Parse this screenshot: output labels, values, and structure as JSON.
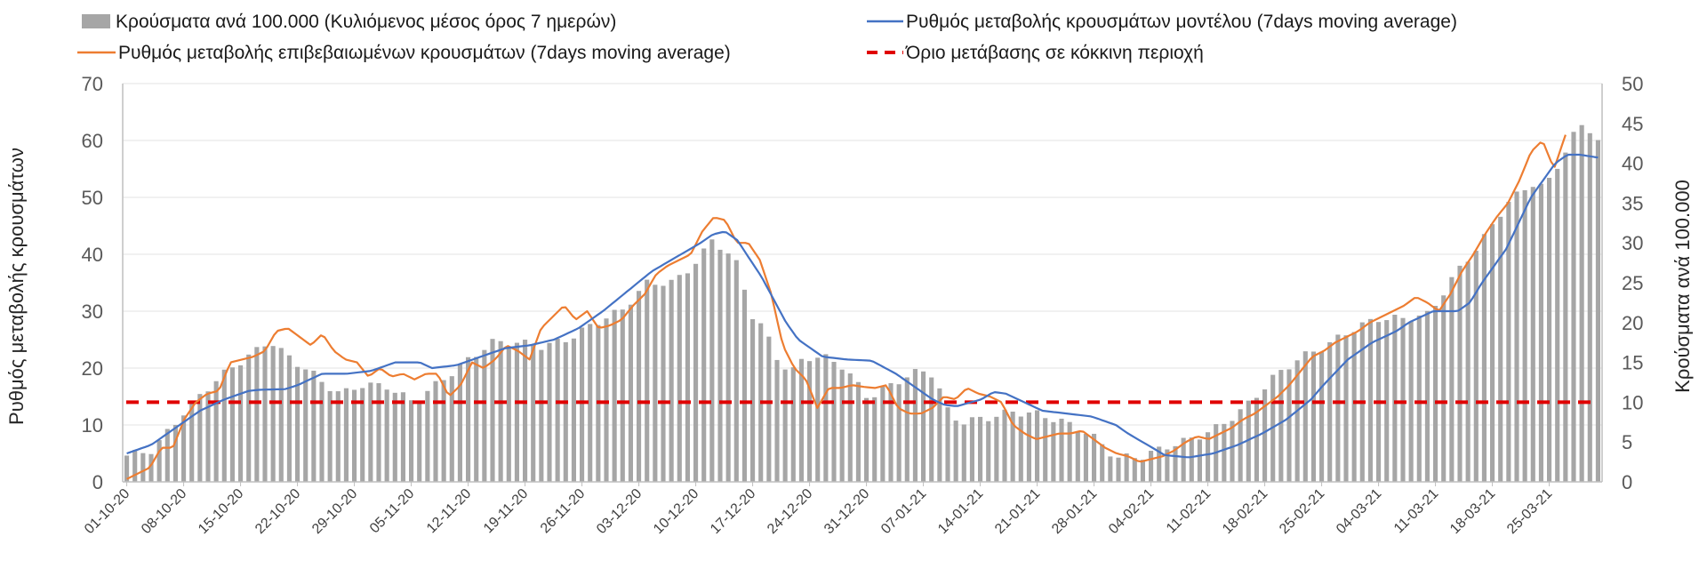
{
  "colors": {
    "bars": "#a6a6a6",
    "model_line": "#4472c4",
    "confirmed_line": "#ed7d31",
    "threshold": "#e00000",
    "grid": "#e3e3e3",
    "axis": "#bfbfbf"
  },
  "legend": {
    "bars": "Κρούσματα ανά 100.000 (Κυλιόμενος μέσος όρος 7 ημερών)",
    "model": "Ρυθμός μεταβολής κρουσμάτων μοντέλου (7days moving average)",
    "confirmed": "Ρυθμός μεταβολής επιβεβαιωμένων κρουσμάτων (7days moving average)",
    "threshold": "Όριο μετάβασης σε κόκκινη περιοχή"
  },
  "chart_data": {
    "type": "bar+line",
    "ylabel_left": "Ρυθμός μεταβολής κρουσμάτων",
    "ylabel_right": "Κρούσματα ανά 100.000",
    "ylim_left": [
      0,
      70
    ],
    "ylim_right": [
      0,
      50
    ],
    "yticks_left": [
      "0",
      "10",
      "20",
      "30",
      "40",
      "50",
      "60",
      "70"
    ],
    "yticks_right": [
      "0",
      "5",
      "10",
      "15",
      "20",
      "25",
      "30",
      "35",
      "40",
      "45",
      "50"
    ],
    "grid": true,
    "threshold_left_value": 14,
    "n_days": 182,
    "x_tick_labels": [
      "01-10-20",
      "08-10-20",
      "15-10-20",
      "22-10-20",
      "29-10-20",
      "05-11-20",
      "12-11-20",
      "19-11-20",
      "26-11-20",
      "03-12-20",
      "10-12-20",
      "17-12-20",
      "24-12-20",
      "31-12-20",
      "07-01-21",
      "14-01-21",
      "21-01-21",
      "28-01-21",
      "04-02-21",
      "11-02-21",
      "18-02-21",
      "25-02-21",
      "04-03-21",
      "11-03-21",
      "18-03-21",
      "25-03-21"
    ],
    "bars_right_axis_keypoints": [
      [
        0,
        3.3
      ],
      [
        4,
        4
      ],
      [
        8,
        8
      ],
      [
        12,
        11.5
      ],
      [
        16,
        14.3
      ],
      [
        20,
        16.5
      ],
      [
        22,
        17.8
      ],
      [
        24,
        16.2
      ],
      [
        26,
        15
      ],
      [
        28,
        14
      ],
      [
        30,
        12.5
      ],
      [
        33,
        11
      ],
      [
        36,
        12.2
      ],
      [
        40,
        12
      ],
      [
        44,
        10
      ],
      [
        48,
        12.5
      ],
      [
        52,
        15
      ],
      [
        56,
        17.5
      ],
      [
        60,
        17.5
      ],
      [
        64,
        17
      ],
      [
        68,
        18
      ],
      [
        72,
        20
      ],
      [
        76,
        21.5
      ],
      [
        80,
        25
      ],
      [
        84,
        25
      ],
      [
        88,
        28
      ],
      [
        90,
        30.5
      ],
      [
        92,
        29
      ],
      [
        94,
        27
      ],
      [
        96,
        21
      ],
      [
        98,
        19
      ],
      [
        100,
        15.5
      ],
      [
        102,
        13.5
      ],
      [
        104,
        15.7
      ],
      [
        108,
        15.5
      ],
      [
        110,
        14.5
      ],
      [
        112,
        12.5
      ],
      [
        114,
        10.5
      ],
      [
        118,
        12.5
      ],
      [
        122,
        14
      ],
      [
        124,
        13.5
      ],
      [
        126,
        9
      ],
      [
        128,
        7.5
      ],
      [
        132,
        8
      ],
      [
        136,
        8.8
      ],
      [
        140,
        8.5
      ],
      [
        144,
        7.5
      ],
      [
        148,
        6
      ],
      [
        150,
        4.5
      ],
      [
        152,
        3
      ],
      [
        156,
        3.2
      ],
      [
        160,
        4.5
      ],
      [
        164,
        5.5
      ],
      [
        168,
        7
      ],
      [
        172,
        9.5
      ],
      [
        176,
        13
      ],
      [
        180,
        15.5
      ],
      [
        184,
        17
      ],
      [
        188,
        19
      ],
      [
        192,
        20.5
      ],
      [
        196,
        20.5
      ],
      [
        200,
        21
      ],
      [
        204,
        26
      ],
      [
        208,
        30
      ],
      [
        212,
        35
      ],
      [
        216,
        37.5
      ],
      [
        218,
        37
      ],
      [
        220,
        40
      ],
      [
        222,
        43.3
      ],
      [
        224,
        45
      ],
      [
        226,
        43
      ]
    ],
    "model_series_keypoints": [
      [
        0,
        5
      ],
      [
        4,
        6.5
      ],
      [
        8,
        9.5
      ],
      [
        12,
        12.5
      ],
      [
        16,
        14.5
      ],
      [
        20,
        16
      ],
      [
        22,
        16.2
      ],
      [
        26,
        16.3
      ],
      [
        28,
        17
      ],
      [
        30,
        18
      ],
      [
        32,
        19
      ],
      [
        36,
        19
      ],
      [
        40,
        19.5
      ],
      [
        44,
        21
      ],
      [
        48,
        21
      ],
      [
        50,
        20
      ],
      [
        54,
        20.5
      ],
      [
        58,
        22
      ],
      [
        62,
        23.5
      ],
      [
        66,
        24
      ],
      [
        70,
        25
      ],
      [
        74,
        27
      ],
      [
        78,
        30
      ],
      [
        82,
        33.5
      ],
      [
        86,
        37
      ],
      [
        90,
        39.5
      ],
      [
        94,
        42
      ],
      [
        96,
        43.5
      ],
      [
        98,
        44
      ],
      [
        100,
        42.5
      ],
      [
        104,
        36
      ],
      [
        108,
        28
      ],
      [
        110,
        25
      ],
      [
        114,
        22
      ],
      [
        118,
        21.5
      ],
      [
        122,
        21.3
      ],
      [
        126,
        19
      ],
      [
        128,
        17.5
      ],
      [
        130,
        16
      ],
      [
        132,
        14.5
      ],
      [
        134,
        13.5
      ],
      [
        136,
        13.3
      ],
      [
        140,
        14.5
      ],
      [
        142,
        15.8
      ],
      [
        144,
        15.5
      ],
      [
        148,
        13.5
      ],
      [
        150,
        12.5
      ],
      [
        154,
        12
      ],
      [
        158,
        11.5
      ],
      [
        162,
        10
      ],
      [
        164,
        8.5
      ],
      [
        168,
        6
      ],
      [
        170,
        4.7
      ],
      [
        174,
        4.3
      ],
      [
        178,
        5
      ],
      [
        182,
        6.5
      ],
      [
        186,
        8.5
      ],
      [
        190,
        11
      ],
      [
        194,
        14.5
      ],
      [
        196,
        17
      ],
      [
        200,
        21.5
      ],
      [
        204,
        24.5
      ],
      [
        206,
        25.5
      ],
      [
        208,
        26.5
      ],
      [
        210,
        28
      ],
      [
        214,
        30
      ],
      [
        218,
        30
      ],
      [
        220,
        31.5
      ],
      [
        222,
        35
      ],
      [
        226,
        41
      ],
      [
        230,
        50
      ],
      [
        234,
        56
      ],
      [
        236,
        57.5
      ],
      [
        238,
        57.5
      ],
      [
        241,
        57
      ]
    ],
    "confirmed_series_keypoints": [
      [
        0,
        0.5
      ],
      [
        2,
        1.5
      ],
      [
        4,
        2.5
      ],
      [
        6,
        6
      ],
      [
        8,
        6
      ],
      [
        10,
        11
      ],
      [
        12,
        14
      ],
      [
        14,
        15.5
      ],
      [
        16,
        16
      ],
      [
        18,
        21
      ],
      [
        20,
        21.5
      ],
      [
        22,
        22
      ],
      [
        24,
        23
      ],
      [
        26,
        26.5
      ],
      [
        28,
        27
      ],
      [
        30,
        25.5
      ],
      [
        32,
        24
      ],
      [
        34,
        26
      ],
      [
        36,
        23
      ],
      [
        38,
        21.5
      ],
      [
        40,
        21
      ],
      [
        42,
        18.5
      ],
      [
        44,
        20
      ],
      [
        46,
        18.5
      ],
      [
        48,
        19
      ],
      [
        50,
        18
      ],
      [
        52,
        19
      ],
      [
        54,
        19
      ],
      [
        56,
        15
      ],
      [
        58,
        17
      ],
      [
        60,
        21
      ],
      [
        62,
        20
      ],
      [
        64,
        21.5
      ],
      [
        66,
        24
      ],
      [
        68,
        23
      ],
      [
        70,
        21.5
      ],
      [
        72,
        27
      ],
      [
        74,
        29
      ],
      [
        76,
        31
      ],
      [
        78,
        28.5
      ],
      [
        80,
        30
      ],
      [
        82,
        27
      ],
      [
        84,
        27.5
      ],
      [
        86,
        28.5
      ],
      [
        88,
        31
      ],
      [
        90,
        33
      ],
      [
        92,
        36.5
      ],
      [
        94,
        38
      ],
      [
        96,
        39
      ],
      [
        98,
        40
      ],
      [
        100,
        44
      ],
      [
        102,
        46.5
      ],
      [
        104,
        46
      ],
      [
        106,
        42
      ],
      [
        108,
        42
      ],
      [
        110,
        39
      ],
      [
        112,
        33
      ],
      [
        114,
        24
      ],
      [
        116,
        20
      ],
      [
        118,
        18
      ],
      [
        120,
        13
      ],
      [
        122,
        16.5
      ],
      [
        124,
        16.5
      ],
      [
        126,
        17
      ],
      [
        128,
        16.7
      ],
      [
        130,
        16.5
      ],
      [
        132,
        17
      ],
      [
        134,
        13
      ],
      [
        136,
        12
      ],
      [
        138,
        12
      ],
      [
        140,
        13
      ],
      [
        142,
        15
      ],
      [
        144,
        14.5
      ],
      [
        146,
        16.5
      ],
      [
        148,
        15.5
      ],
      [
        150,
        15
      ],
      [
        152,
        14
      ],
      [
        154,
        10
      ],
      [
        156,
        8.5
      ],
      [
        158,
        7.5
      ],
      [
        160,
        8
      ],
      [
        162,
        8.5
      ],
      [
        164,
        8.5
      ],
      [
        166,
        9
      ],
      [
        168,
        7.5
      ],
      [
        170,
        6
      ],
      [
        172,
        5
      ],
      [
        174,
        4.5
      ],
      [
        176,
        3.5
      ],
      [
        178,
        4
      ],
      [
        180,
        4.5
      ],
      [
        182,
        5.5
      ],
      [
        184,
        7
      ],
      [
        186,
        8
      ],
      [
        188,
        7.5
      ],
      [
        190,
        8.5
      ],
      [
        192,
        9.5
      ],
      [
        194,
        11
      ],
      [
        196,
        12
      ],
      [
        198,
        13.5
      ],
      [
        200,
        15
      ],
      [
        202,
        17
      ],
      [
        204,
        19.5
      ],
      [
        206,
        22
      ],
      [
        208,
        23
      ],
      [
        210,
        24.5
      ],
      [
        212,
        25.5
      ],
      [
        214,
        26.5
      ],
      [
        216,
        28
      ],
      [
        218,
        29
      ],
      [
        220,
        30
      ],
      [
        222,
        31
      ],
      [
        224,
        32.5
      ],
      [
        226,
        31.5
      ],
      [
        228,
        30
      ],
      [
        230,
        33
      ],
      [
        232,
        37
      ],
      [
        234,
        40
      ],
      [
        236,
        43.5
      ],
      [
        238,
        46.5
      ],
      [
        240,
        49
      ],
      [
        242,
        53
      ],
      [
        244,
        58
      ],
      [
        246,
        60
      ],
      [
        248,
        55
      ],
      [
        250,
        61
      ]
    ]
  }
}
